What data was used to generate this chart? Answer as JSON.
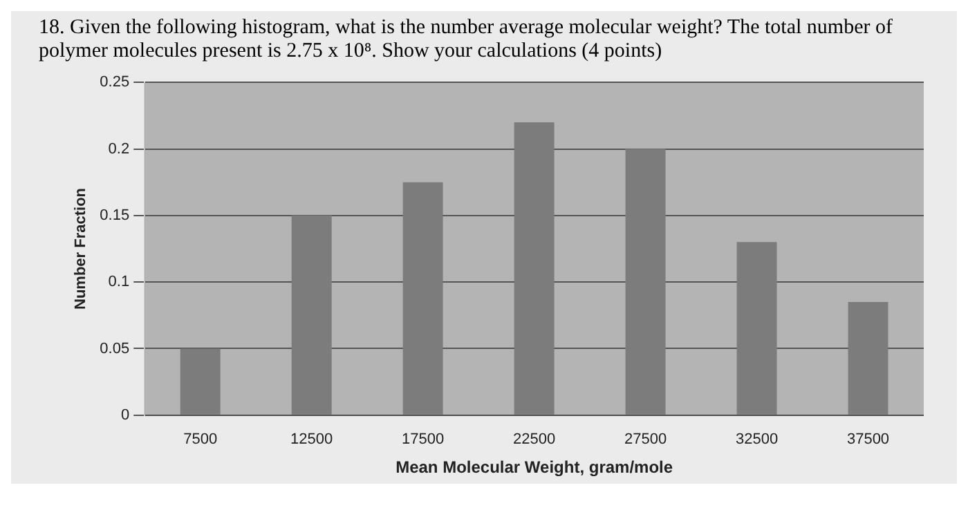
{
  "chart_data": {
    "type": "bar",
    "title": "18. Given the following histogram, what is the number average molecular weight? The total number of polymer molecules present is 2.75 x 10⁸. Show your calculations (4 points)",
    "xlabel": "Mean Molecular Weight, gram/mole",
    "ylabel": "Number Fraction",
    "categories": [
      "7500",
      "12500",
      "17500",
      "22500",
      "27500",
      "32500",
      "37500"
    ],
    "values": [
      0.05,
      0.15,
      0.175,
      0.22,
      0.2,
      0.13,
      0.085
    ],
    "color": "#7c7c7c",
    "ylim": [
      0,
      0.25
    ],
    "yticks": [
      0,
      0.05,
      0.1,
      0.15,
      0.2,
      0.25
    ],
    "grid": "y",
    "legend": false
  }
}
